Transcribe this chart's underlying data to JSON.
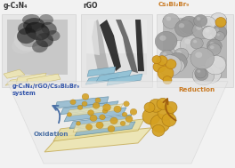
{
  "bg_color": "#f2f2f2",
  "panel_bg": "#e6e6e6",
  "label_gcn": "g-C₃N₄",
  "label_rgo": "rGO",
  "label_csbi": "Cs₃Bi₂Br₉",
  "label_system": "g-C₃N₄/rGO/Cs₃Bi₂Br₉\nsystem",
  "label_oxidation": "Oxidation",
  "label_reduction": "Reduction",
  "color_csbi_label": "#c87820",
  "color_system_label": "#3355aa",
  "color_oxidation": "#4a6fa5",
  "color_reduction": "#c87820",
  "color_sheet_blue": "#8ab4cc",
  "color_sheet_cream": "#ede5b8",
  "color_nanoparticle": "#d4a020",
  "color_arrow_brown": "#a06010",
  "figsize": [
    2.64,
    1.89
  ],
  "dpi": 100
}
